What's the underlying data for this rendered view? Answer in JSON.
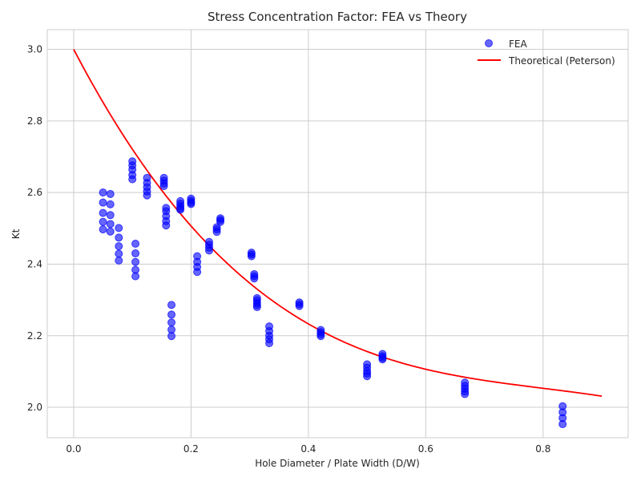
{
  "chart_data": {
    "type": "scatter",
    "title": "Stress Concentration Factor: FEA vs Theory",
    "xlabel": "Hole Diameter / Plate Width (D/W)",
    "ylabel": "Kt",
    "xlim": [
      -0.045,
      0.945
    ],
    "ylim": [
      1.915,
      3.055
    ],
    "xticks": [
      0.0,
      0.2,
      0.4,
      0.6,
      0.8
    ],
    "xtick_labels": [
      "0.0",
      "0.2",
      "0.4",
      "0.6",
      "0.8"
    ],
    "yticks": [
      2.0,
      2.2,
      2.4,
      2.6,
      2.8,
      3.0
    ],
    "ytick_labels": [
      "2.0",
      "2.2",
      "2.4",
      "2.6",
      "2.8",
      "3.0"
    ],
    "grid": true,
    "legend_position": "top-right",
    "series": [
      {
        "name": "FEA",
        "kind": "scatter",
        "color": "#0000ff",
        "points": [
          [
            0.05,
            2.6
          ],
          [
            0.05,
            2.572
          ],
          [
            0.05,
            2.543
          ],
          [
            0.05,
            2.518
          ],
          [
            0.05,
            2.497
          ],
          [
            0.0625,
            2.596
          ],
          [
            0.0625,
            2.567
          ],
          [
            0.0625,
            2.537
          ],
          [
            0.0625,
            2.512
          ],
          [
            0.0625,
            2.491
          ],
          [
            0.0769,
            2.501
          ],
          [
            0.0769,
            2.474
          ],
          [
            0.0769,
            2.45
          ],
          [
            0.0769,
            2.429
          ],
          [
            0.0769,
            2.41
          ],
          [
            0.1,
            2.687
          ],
          [
            0.1,
            2.676
          ],
          [
            0.1,
            2.664
          ],
          [
            0.1,
            2.649
          ],
          [
            0.1,
            2.637
          ],
          [
            0.1053,
            2.457
          ],
          [
            0.1053,
            2.43
          ],
          [
            0.1053,
            2.406
          ],
          [
            0.1053,
            2.384
          ],
          [
            0.1053,
            2.366
          ],
          [
            0.125,
            2.641
          ],
          [
            0.125,
            2.627
          ],
          [
            0.125,
            2.615
          ],
          [
            0.125,
            2.603
          ],
          [
            0.125,
            2.592
          ],
          [
            0.1538,
            2.641
          ],
          [
            0.1538,
            2.633
          ],
          [
            0.1538,
            2.625
          ],
          [
            0.1538,
            2.618
          ],
          [
            0.1575,
            2.557
          ],
          [
            0.1575,
            2.548
          ],
          [
            0.1575,
            2.534
          ],
          [
            0.1575,
            2.52
          ],
          [
            0.1575,
            2.508
          ],
          [
            0.1667,
            2.286
          ],
          [
            0.1667,
            2.259
          ],
          [
            0.1667,
            2.237
          ],
          [
            0.1667,
            2.217
          ],
          [
            0.1667,
            2.199
          ],
          [
            0.1818,
            2.576
          ],
          [
            0.1818,
            2.569
          ],
          [
            0.1818,
            2.562
          ],
          [
            0.1818,
            2.556
          ],
          [
            0.1818,
            2.552
          ],
          [
            0.2,
            2.583
          ],
          [
            0.2,
            2.577
          ],
          [
            0.2,
            2.572
          ],
          [
            0.2,
            2.568
          ],
          [
            0.2105,
            2.422
          ],
          [
            0.2105,
            2.406
          ],
          [
            0.2105,
            2.392
          ],
          [
            0.2105,
            2.378
          ],
          [
            0.2308,
            2.462
          ],
          [
            0.2308,
            2.454
          ],
          [
            0.2308,
            2.446
          ],
          [
            0.2308,
            2.438
          ],
          [
            0.2439,
            2.503
          ],
          [
            0.2439,
            2.497
          ],
          [
            0.2439,
            2.49
          ],
          [
            0.25,
            2.528
          ],
          [
            0.25,
            2.523
          ],
          [
            0.25,
            2.518
          ],
          [
            0.303,
            2.432
          ],
          [
            0.303,
            2.427
          ],
          [
            0.303,
            2.422
          ],
          [
            0.3077,
            2.372
          ],
          [
            0.3077,
            2.366
          ],
          [
            0.3077,
            2.36
          ],
          [
            0.3125,
            2.305
          ],
          [
            0.3125,
            2.299
          ],
          [
            0.3125,
            2.292
          ],
          [
            0.3125,
            2.286
          ],
          [
            0.3125,
            2.28
          ],
          [
            0.3333,
            2.226
          ],
          [
            0.3333,
            2.213
          ],
          [
            0.3333,
            2.2
          ],
          [
            0.3333,
            2.19
          ],
          [
            0.3333,
            2.179
          ],
          [
            0.3846,
            2.293
          ],
          [
            0.3846,
            2.288
          ],
          [
            0.3846,
            2.283
          ],
          [
            0.4211,
            2.216
          ],
          [
            0.4211,
            2.21
          ],
          [
            0.4211,
            2.204
          ],
          [
            0.4211,
            2.199
          ],
          [
            0.5,
            2.12
          ],
          [
            0.5,
            2.111
          ],
          [
            0.5,
            2.101
          ],
          [
            0.5,
            2.094
          ],
          [
            0.5,
            2.087
          ],
          [
            0.5263,
            2.149
          ],
          [
            0.5263,
            2.143
          ],
          [
            0.5263,
            2.138
          ],
          [
            0.5263,
            2.134
          ],
          [
            0.6667,
            2.069
          ],
          [
            0.6667,
            2.06
          ],
          [
            0.6667,
            2.052
          ],
          [
            0.6667,
            2.044
          ],
          [
            0.6667,
            2.037
          ],
          [
            0.8333,
            2.003
          ],
          [
            0.8333,
            1.986
          ],
          [
            0.8333,
            1.97
          ],
          [
            0.8333,
            1.953
          ]
        ]
      },
      {
        "name": "Theoretical (Peterson)",
        "kind": "line",
        "color": "#ff0000",
        "equation": "Kt = 3 - 3.14(d) + 3.667(d)^2 - 1.527(d)^3",
        "x_range": [
          0.0,
          0.9
        ]
      }
    ]
  }
}
